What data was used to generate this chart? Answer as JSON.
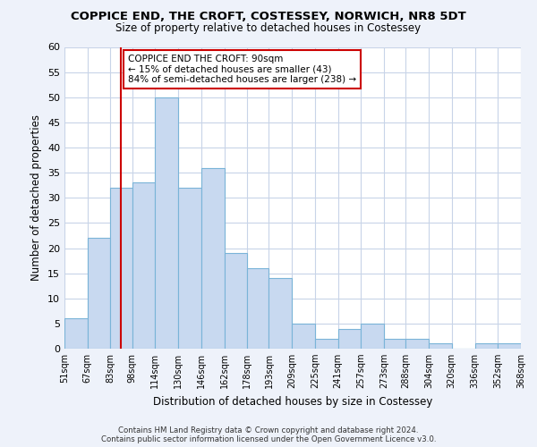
{
  "title": "COPPICE END, THE CROFT, COSTESSEY, NORWICH, NR8 5DT",
  "subtitle": "Size of property relative to detached houses in Costessey",
  "xlabel": "Distribution of detached houses by size in Costessey",
  "ylabel": "Number of detached properties",
  "bin_labels": [
    "51sqm",
    "67sqm",
    "83sqm",
    "98sqm",
    "114sqm",
    "130sqm",
    "146sqm",
    "162sqm",
    "178sqm",
    "193sqm",
    "209sqm",
    "225sqm",
    "241sqm",
    "257sqm",
    "273sqm",
    "288sqm",
    "304sqm",
    "320sqm",
    "336sqm",
    "352sqm",
    "368sqm"
  ],
  "bin_edges": [
    51,
    67,
    83,
    98,
    114,
    130,
    146,
    162,
    178,
    193,
    209,
    225,
    241,
    257,
    273,
    288,
    304,
    320,
    336,
    352,
    368
  ],
  "bar_heights": [
    6,
    22,
    32,
    33,
    50,
    32,
    36,
    19,
    16,
    14,
    5,
    2,
    4,
    5,
    2,
    2,
    1,
    0,
    1,
    1
  ],
  "bar_color": "#c8d9f0",
  "bar_edge_color": "#7ab4d8",
  "vline_x": 90,
  "vline_color": "#cc0000",
  "ylim": [
    0,
    60
  ],
  "yticks": [
    0,
    5,
    10,
    15,
    20,
    25,
    30,
    35,
    40,
    45,
    50,
    55,
    60
  ],
  "annotation_title": "COPPICE END THE CROFT: 90sqm",
  "annotation_line1": "← 15% of detached houses are smaller (43)",
  "annotation_line2": "84% of semi-detached houses are larger (238) →",
  "annotation_box_color": "white",
  "annotation_box_edge": "#cc0000",
  "footer1": "Contains HM Land Registry data © Crown copyright and database right 2024.",
  "footer2": "Contains public sector information licensed under the Open Government Licence v3.0.",
  "bg_color": "#eef2fa",
  "plot_bg_color": "#ffffff",
  "grid_color": "#c8d4e8"
}
